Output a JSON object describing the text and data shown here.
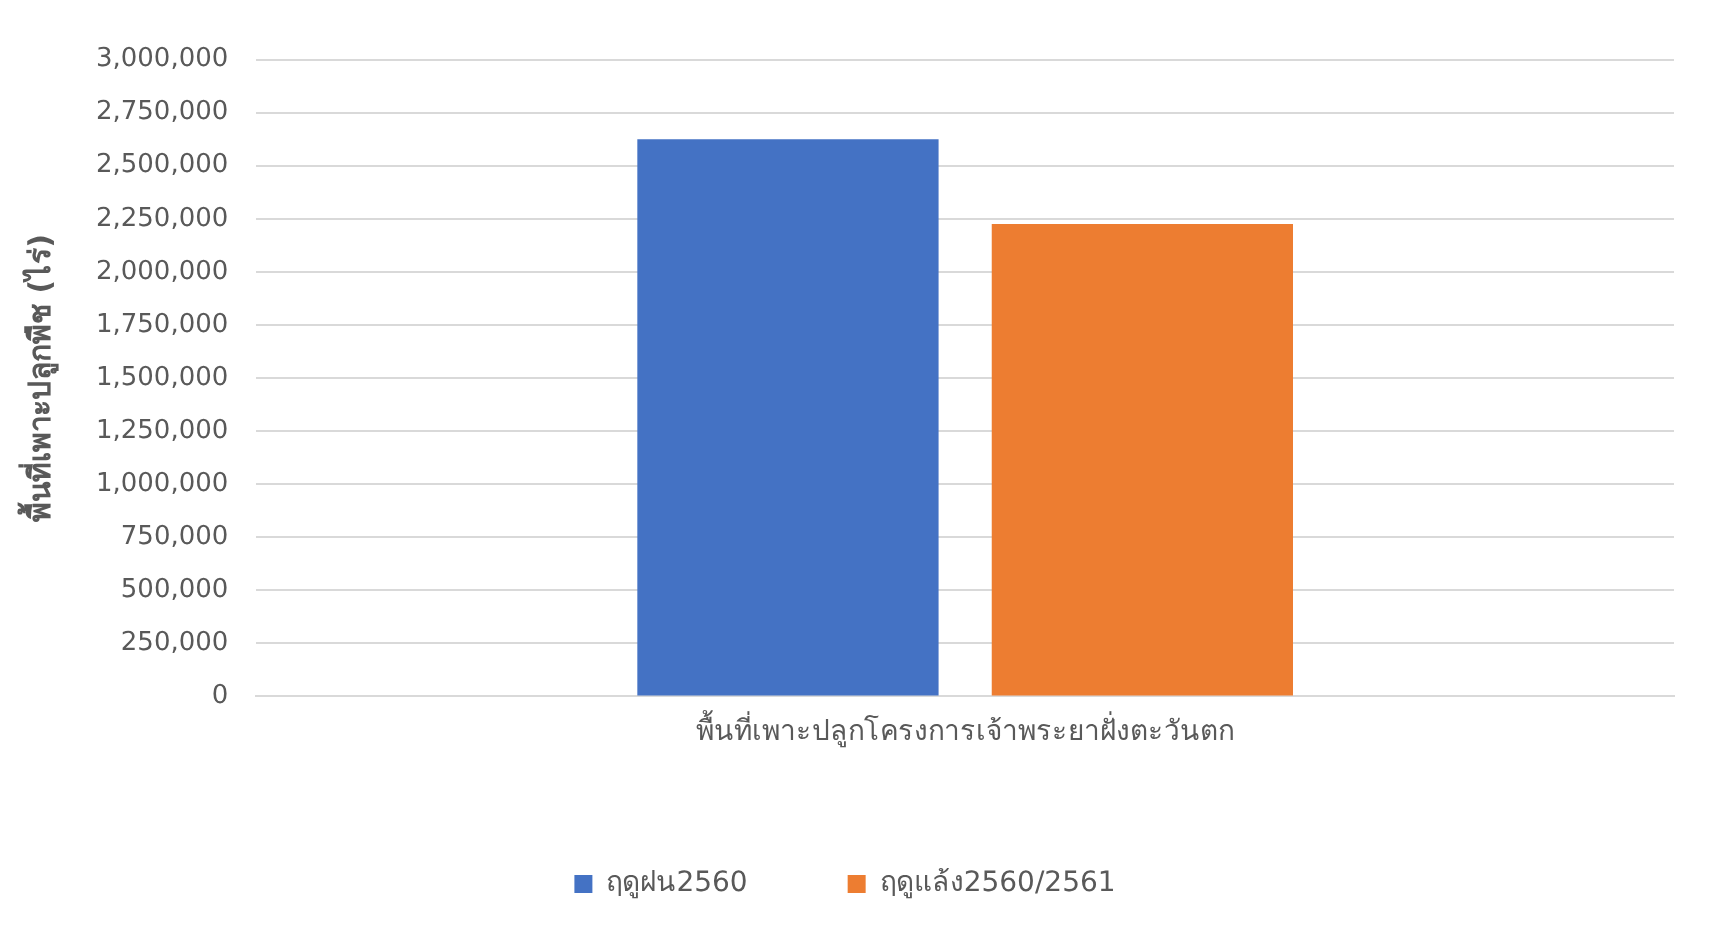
{
  "chart_data": {
    "type": "bar",
    "ylabel": "พื้นที่เพาะปลูกพืช (ไร่)",
    "categories": [
      "พื้นที่เพาะปลูกโครงการเจ้าพระยาฝั่งตะวันตก"
    ],
    "series": [
      {
        "name": "ฤดูฝน2560",
        "color": "#4472c4",
        "values": [
          2625000
        ]
      },
      {
        "name": "ฤดูแล้ง2560/2561",
        "color": "#ed7d31",
        "values": [
          2225000
        ]
      }
    ],
    "ylim": [
      0,
      3000000
    ],
    "yticks": [
      0,
      {
        "value": 250000,
        "label": "250,000"
      },
      {
        "value": 500000,
        "label": "500,000"
      },
      {
        "value": 750000,
        "label": "750,000"
      },
      {
        "value": 1000000,
        "label": "1,000,000"
      },
      {
        "value": 1250000,
        "label": "1,250,000"
      },
      {
        "value": 1500000,
        "label": "1,500,000"
      },
      {
        "value": 1750000,
        "label": "1,750,000"
      },
      {
        "value": 2000000,
        "label": "2,000,000"
      },
      {
        "value": 2250000,
        "label": "2,250,000"
      },
      {
        "value": 2500000,
        "label": "2,500,000"
      },
      {
        "value": 2750000,
        "label": "2,750,000"
      },
      {
        "value": 3000000,
        "label": "3,000,000"
      }
    ],
    "grid": "y",
    "legend": "bottom"
  }
}
